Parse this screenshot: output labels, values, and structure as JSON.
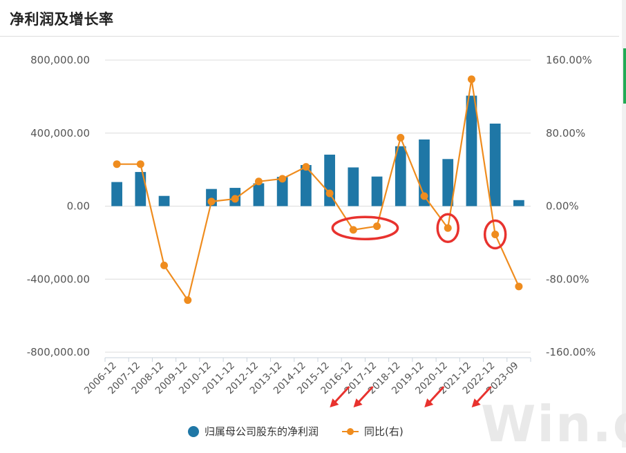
{
  "page": {
    "title": "净利润及增长率",
    "watermark": "Win.d"
  },
  "colors": {
    "bar": "#1f77a6",
    "line": "#ef8c1e",
    "grid": "#dcdcdc",
    "axis_text": "#555555",
    "annotation": "#e8322e"
  },
  "legend": {
    "bar_label": "归属母公司股东的净利润",
    "line_label": "同比(右)"
  },
  "chart_data": {
    "type": "bar",
    "categories": [
      "2006-12",
      "2007-12",
      "2008-12",
      "2009-12",
      "2010-12",
      "2011-12",
      "2012-12",
      "2013-12",
      "2014-12",
      "2015-12",
      "2016-12",
      "2017-12",
      "2018-12",
      "2019-12",
      "2020-12",
      "2021-12",
      "2022-12",
      "2023-09"
    ],
    "series": [
      {
        "name": "归属母公司股东的净利润",
        "type": "bar",
        "axis": "left",
        "values": [
          132000,
          187000,
          56000,
          0,
          94000,
          100000,
          125000,
          160000,
          225000,
          282000,
          212000,
          162000,
          328000,
          365000,
          258000,
          605000,
          452000,
          33000
        ]
      },
      {
        "name": "同比(右)",
        "type": "line",
        "axis": "right",
        "values": [
          46,
          46,
          -65,
          -103,
          5,
          8,
          27,
          30,
          43,
          14,
          -26,
          -22,
          75,
          11,
          -24,
          139,
          -31,
          -88
        ]
      }
    ],
    "y_left": {
      "ylim": [
        -800000,
        800000
      ],
      "ticks": [
        "-800,000.00",
        "-400,000.00",
        "0.00",
        "400,000.00",
        "800,000.00"
      ],
      "tick_values": [
        -800000,
        -400000,
        0,
        400000,
        800000
      ]
    },
    "y_right": {
      "ylim": [
        -160,
        160
      ],
      "ticks": [
        "-160.00%",
        "-80.00%",
        "0.00%",
        "80.00%",
        "160.00%"
      ],
      "tick_values": [
        -160,
        -80,
        0,
        80,
        160
      ]
    },
    "grid": true,
    "legend_position": "bottom",
    "annotations": [
      {
        "kind": "ellipse",
        "categories": [
          "2016-12",
          "2017-12"
        ]
      },
      {
        "kind": "ellipse",
        "categories": [
          "2020-12"
        ]
      },
      {
        "kind": "ellipse",
        "categories": [
          "2022-12"
        ]
      },
      {
        "kind": "arrow",
        "category": "2016-12"
      },
      {
        "kind": "arrow",
        "category": "2017-12"
      },
      {
        "kind": "arrow",
        "category": "2020-12"
      },
      {
        "kind": "arrow",
        "category": "2022-12"
      }
    ]
  }
}
